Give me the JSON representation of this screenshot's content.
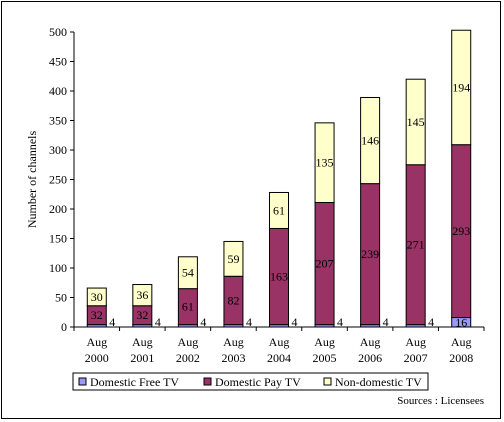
{
  "chart_data": {
    "type": "bar",
    "stacked": true,
    "ylabel": "Number of channels",
    "ylim": [
      0,
      500
    ],
    "yticks": [
      0,
      50,
      100,
      150,
      200,
      250,
      300,
      350,
      400,
      450,
      500
    ],
    "categories": [
      [
        "Aug",
        "2000"
      ],
      [
        "Aug",
        "2001"
      ],
      [
        "Aug",
        "2002"
      ],
      [
        "Aug",
        "2003"
      ],
      [
        "Aug",
        "2004"
      ],
      [
        "Aug",
        "2005"
      ],
      [
        "Aug",
        "2006"
      ],
      [
        "Aug",
        "2007"
      ],
      [
        "Aug",
        "2008"
      ]
    ],
    "series": [
      {
        "name": "Domestic Free TV",
        "color": "#9999ff",
        "values": [
          4,
          4,
          4,
          4,
          4,
          4,
          4,
          4,
          16
        ]
      },
      {
        "name": "Domestic Pay TV",
        "color": "#993366",
        "values": [
          32,
          32,
          61,
          82,
          163,
          207,
          239,
          271,
          293
        ]
      },
      {
        "name": "Non-domestic TV",
        "color": "#ffffcc",
        "values": [
          30,
          36,
          54,
          59,
          61,
          135,
          146,
          145,
          194
        ]
      }
    ],
    "source": "Sources : Licensees",
    "legend_position": "bottom"
  }
}
